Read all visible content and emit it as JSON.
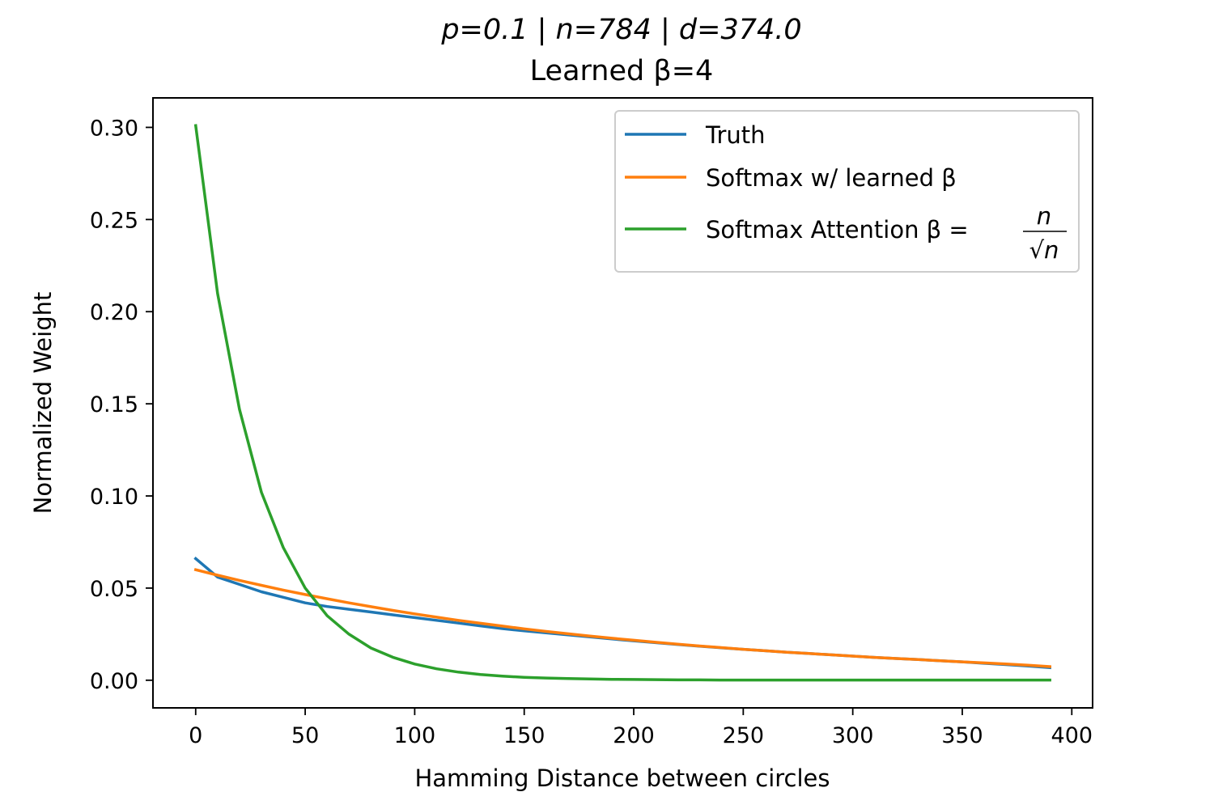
{
  "chart_data": {
    "type": "line",
    "title_line1": "p=0.1 | n=784 | d=374.0",
    "title_line2": "Learned β=4",
    "xlabel": "Hamming Distance between circles",
    "ylabel": "Normalized Weight",
    "xlim": [
      -19.5,
      409.5
    ],
    "ylim": [
      -0.015,
      0.316
    ],
    "xticks": [
      0,
      50,
      100,
      150,
      200,
      250,
      300,
      350,
      400
    ],
    "xtick_labels": [
      "0",
      "50",
      "100",
      "150",
      "200",
      "250",
      "300",
      "350",
      "400"
    ],
    "yticks": [
      0.0,
      0.05,
      0.1,
      0.15,
      0.2,
      0.25,
      0.3
    ],
    "ytick_labels": [
      "0.00",
      "0.05",
      "0.10",
      "0.15",
      "0.20",
      "0.25",
      "0.30"
    ],
    "grid": false,
    "legend_position": "top-right",
    "x": [
      0,
      10,
      20,
      30,
      40,
      50,
      60,
      70,
      80,
      90,
      100,
      110,
      120,
      130,
      140,
      150,
      160,
      170,
      180,
      190,
      200,
      210,
      220,
      230,
      240,
      250,
      260,
      270,
      280,
      290,
      300,
      310,
      320,
      330,
      340,
      350,
      360,
      370,
      380,
      390
    ],
    "series": [
      {
        "name": "Truth",
        "color": "#1f77b4",
        "values": [
          0.066,
          0.056,
          0.052,
          0.048,
          0.045,
          0.042,
          0.04,
          0.0385,
          0.037,
          0.0355,
          0.034,
          0.0325,
          0.031,
          0.0295,
          0.028,
          0.0268,
          0.0257,
          0.0246,
          0.0235,
          0.0224,
          0.0214,
          0.0204,
          0.0194,
          0.0185,
          0.0176,
          0.0168,
          0.016,
          0.0152,
          0.0145,
          0.0138,
          0.0131,
          0.0124,
          0.0118,
          0.0112,
          0.0106,
          0.01,
          0.0092,
          0.0085,
          0.0077,
          0.0068
        ]
      },
      {
        "name": "Softmax w/ learned β",
        "color": "#ff7f0e",
        "values": [
          0.06,
          0.057,
          0.0542,
          0.0515,
          0.0489,
          0.0465,
          0.0442,
          0.042,
          0.0399,
          0.0379,
          0.036,
          0.0342,
          0.0325,
          0.0309,
          0.0294,
          0.0279,
          0.0265,
          0.0252,
          0.024,
          0.0228,
          0.0217,
          0.0206,
          0.0196,
          0.0186,
          0.0177,
          0.0168,
          0.016,
          0.0152,
          0.0145,
          0.0138,
          0.0131,
          0.0124,
          0.0118,
          0.0112,
          0.0106,
          0.01,
          0.0094,
          0.0088,
          0.0082,
          0.0074
        ]
      },
      {
        "name": "Softmax Attention β = n/√n",
        "color": "#2ca02c",
        "values": [
          0.301,
          0.21,
          0.147,
          0.102,
          0.072,
          0.05,
          0.035,
          0.025,
          0.0175,
          0.0125,
          0.0088,
          0.0062,
          0.0044,
          0.0031,
          0.0022,
          0.0016,
          0.0012,
          0.0009,
          0.0007,
          0.0005,
          0.0004,
          0.0003,
          0.0002,
          0.0002,
          0.0001,
          0.0001,
          0.0001,
          0.0001,
          0.0001,
          0.0001,
          0.0001,
          0.0001,
          0.0001,
          0.0001,
          0.0001,
          0.0001,
          0.0001,
          0.0001,
          0.0001,
          0.0001
        ]
      }
    ],
    "legend": {
      "entries": [
        {
          "text": "Truth"
        },
        {
          "text": "Softmax w/ learned β"
        },
        {
          "text_prefix": "Softmax Attention β =",
          "frac_num": "n",
          "frac_den": "√n"
        }
      ]
    }
  }
}
